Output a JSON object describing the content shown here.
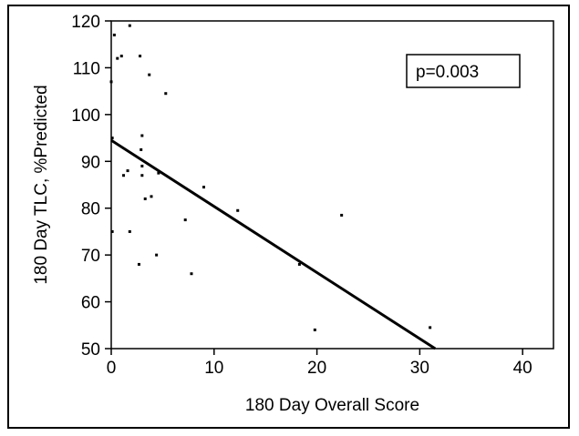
{
  "chart_data": {
    "type": "scatter",
    "xlabel": "180 Day Overall Score",
    "ylabel": "180 Day TLC, %Predicted",
    "xlim": [
      0,
      43
    ],
    "ylim": [
      50,
      120
    ],
    "x_ticks": [
      0,
      10,
      20,
      30,
      40
    ],
    "y_ticks": [
      50,
      60,
      70,
      80,
      90,
      100,
      110,
      120
    ],
    "grid": false,
    "annotation": "p=0.003",
    "annotation_placement": "top-right",
    "points": [
      [
        0,
        107
      ],
      [
        0.3,
        117
      ],
      [
        0.6,
        112
      ],
      [
        1.0,
        112.5
      ],
      [
        1.8,
        119
      ],
      [
        2.8,
        112.5
      ],
      [
        3.7,
        108.5
      ],
      [
        5.3,
        104.5
      ],
      [
        0.1,
        95
      ],
      [
        3.0,
        95.5
      ],
      [
        2.9,
        92.5
      ],
      [
        3.0,
        89
      ],
      [
        3.0,
        87
      ],
      [
        1.2,
        87
      ],
      [
        1.6,
        88
      ],
      [
        4.6,
        87.5
      ],
      [
        9.0,
        84.5
      ],
      [
        3.3,
        82
      ],
      [
        3.9,
        82.5
      ],
      [
        12.3,
        79.5
      ],
      [
        22.4,
        78.5
      ],
      [
        7.2,
        77.5
      ],
      [
        1.8,
        75
      ],
      [
        0.1,
        75
      ],
      [
        4.4,
        70
      ],
      [
        2.7,
        68
      ],
      [
        7.8,
        66
      ],
      [
        18.3,
        68
      ],
      [
        19.8,
        54
      ],
      [
        31.0,
        54.5
      ]
    ],
    "fit_line": {
      "x": [
        0,
        31.5
      ],
      "y": [
        94.5,
        50
      ]
    }
  }
}
